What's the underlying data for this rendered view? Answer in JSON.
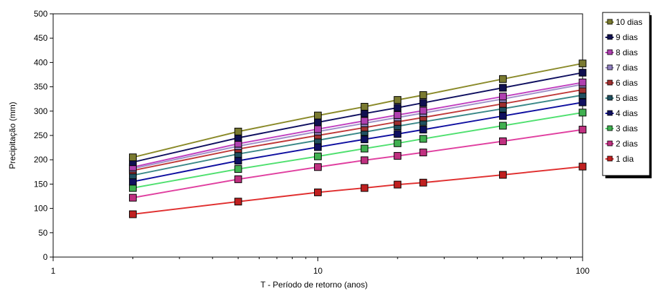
{
  "chart_data": {
    "type": "line",
    "xlabel": "T - Período de retorno (anos)",
    "ylabel": "Precipitação (mm)",
    "x_scale": "log",
    "xlim": [
      1,
      100
    ],
    "ylim": [
      0,
      500
    ],
    "x_ticks": [
      1,
      10,
      100
    ],
    "x_tick_labels": [
      "1",
      "10",
      "100"
    ],
    "y_ticks": [
      0,
      50,
      100,
      150,
      200,
      250,
      300,
      350,
      400,
      450,
      500
    ],
    "y_tick_labels": [
      "0",
      "50",
      "100",
      "150",
      "200",
      "250",
      "300",
      "350",
      "400",
      "450",
      "500"
    ],
    "grid": false,
    "legend_position": "top-right, outside plot",
    "x": [
      2,
      5,
      10,
      15,
      20,
      25,
      50,
      100
    ],
    "series": [
      {
        "name": "10 dias",
        "color": "#8a8a2a",
        "marker_color": "#7a7a30",
        "values": [
          205,
          258,
          291,
          309,
          323,
          333,
          366,
          398
        ]
      },
      {
        "name": "9 dias",
        "color": "#101060",
        "marker_color": "#101050",
        "values": [
          195,
          245,
          277,
          295,
          307,
          317,
          348,
          379
        ]
      },
      {
        "name": "8 dias",
        "color": "#c040c0",
        "marker_color": "#b040b0",
        "values": [
          185,
          233,
          263,
          280,
          292,
          301,
          330,
          359
        ]
      },
      {
        "name": "7 dias",
        "color": "#a090c8",
        "marker_color": "#9080c0",
        "values": [
          182,
          228,
          258,
          275,
          287,
          296,
          325,
          355
        ]
      },
      {
        "name": "6 dias",
        "color": "#c03a3a",
        "marker_color": "#a03030",
        "values": [
          178,
          222,
          250,
          266,
          278,
          287,
          315,
          344
        ]
      },
      {
        "name": "5 dias",
        "color": "#3a8888",
        "marker_color": "#205060",
        "values": [
          168,
          212,
          240,
          257,
          269,
          278,
          305,
          333
        ]
      },
      {
        "name": "4 dias",
        "color": "#1010a0",
        "marker_color": "#101060",
        "values": [
          155,
          198,
          226,
          242,
          253,
          262,
          290,
          318
        ]
      },
      {
        "name": "3 dias",
        "color": "#50e070",
        "marker_color": "#40b050",
        "values": [
          142,
          181,
          207,
          223,
          234,
          243,
          270,
          297
        ]
      },
      {
        "name": "2 dias",
        "color": "#e040a0",
        "marker_color": "#c03080",
        "values": [
          122,
          160,
          185,
          199,
          208,
          215,
          238,
          262
        ]
      },
      {
        "name": "1 dia",
        "color": "#e03030",
        "marker_color": "#c02020",
        "values": [
          88,
          114,
          133,
          142,
          149,
          153,
          169,
          186
        ]
      }
    ]
  }
}
